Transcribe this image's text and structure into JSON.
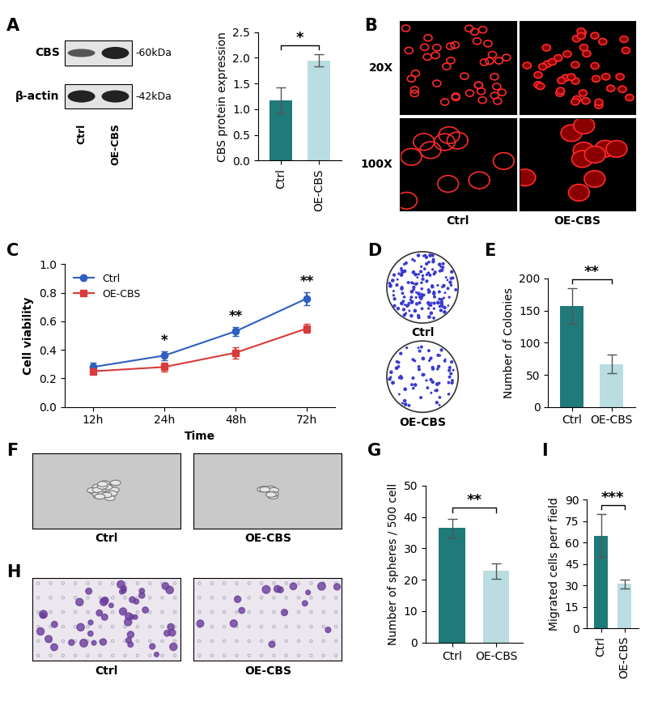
{
  "chart_data": [
    {
      "panel": "A",
      "type": "bar",
      "categories": [
        "Ctrl",
        "OE-CBS"
      ],
      "values": [
        1.17,
        1.95
      ],
      "errors": [
        0.25,
        0.12
      ],
      "colors": [
        "#1f7a7a",
        "#b9dde1"
      ],
      "ylabel": "CBS protein expression",
      "ylim": [
        0,
        2.5
      ],
      "yticks": [
        {
          "value": 0,
          "label": "0.0"
        },
        {
          "value": 0.5,
          "label": "0.5"
        },
        {
          "value": 1,
          "label": "1.0"
        },
        {
          "value": 1.5,
          "label": "1.5"
        },
        {
          "value": 2,
          "label": "2.0"
        },
        {
          "value": 2.5,
          "label": "2.5"
        }
      ],
      "significance": "*"
    },
    {
      "panel": "C",
      "type": "line",
      "categories": [
        "12h",
        "24h",
        "48h",
        "72h"
      ],
      "xlabel": "Time",
      "ylabel": "Cell viability",
      "series": [
        {
          "name": "Ctrl",
          "color": "#2e5fc1",
          "marker": "o",
          "values": [
            0.28,
            0.36,
            0.53,
            0.76
          ],
          "errors": [
            0.03,
            0.03,
            0.03,
            0.045
          ]
        },
        {
          "name": "OE-CBS",
          "color": "#d93a3a",
          "marker": "s",
          "values": [
            0.25,
            0.28,
            0.38,
            0.55
          ],
          "errors": [
            0.02,
            0.03,
            0.04,
            0.03
          ]
        }
      ],
      "ylim": [
        0,
        1
      ],
      "yticks": [
        {
          "value": 0,
          "label": "0.0"
        },
        {
          "value": 0.2,
          "label": "0.2"
        },
        {
          "value": 0.4,
          "label": "0.4"
        },
        {
          "value": 0.6,
          "label": "0.6"
        },
        {
          "value": 0.8,
          "label": "0.8"
        },
        {
          "value": 1,
          "label": "1.0"
        }
      ],
      "annotations": [
        null,
        "*",
        "**",
        "**"
      ],
      "legend": "upper left"
    },
    {
      "panel": "E",
      "type": "bar",
      "categories": [
        "Ctrl",
        "OE-CBS"
      ],
      "values": [
        157,
        67
      ],
      "errors": [
        28,
        14
      ],
      "colors": [
        "#1f7a7a",
        "#b9dde1"
      ],
      "ylabel": "Number of Colonies",
      "ylim": [
        0,
        200
      ],
      "yticks": [
        0,
        50,
        100,
        150,
        200
      ],
      "significance": "**"
    },
    {
      "panel": "G",
      "type": "bar",
      "categories": [
        "Ctrl",
        "OE-CBS"
      ],
      "values": [
        36.5,
        22.8
      ],
      "errors": [
        3,
        2.5
      ],
      "colors": [
        "#1f7a7a",
        "#b9dde1"
      ],
      "ylabel": "Number of spheres / 500 cell",
      "ylim": [
        0,
        50
      ],
      "yticks": [
        0,
        10,
        20,
        30,
        40,
        50
      ],
      "significance": "**"
    },
    {
      "panel": "I",
      "type": "bar",
      "categories": [
        "Ctrl",
        "OE-CBS"
      ],
      "values": [
        65,
        31
      ],
      "errors": [
        15,
        3
      ],
      "colors": [
        "#1f7a7a",
        "#b9dde1"
      ],
      "ylabel": "Migrated cells perr field",
      "ylim": [
        0,
        90
      ],
      "yticks": [
        0,
        15,
        30,
        45,
        60,
        75,
        90
      ],
      "significance": "***"
    }
  ],
  "images": {
    "A": {
      "rows": [
        {
          "label": "CBS",
          "size": "-60kDa"
        },
        {
          "label": "β-actin",
          "size": "-42kDa"
        }
      ],
      "lanes": [
        "Ctrl",
        "OE-CBS"
      ]
    },
    "B": {
      "magnifications": [
        "20X",
        "100X"
      ],
      "groups": [
        "Ctrl",
        "OE-CBS"
      ]
    },
    "D": {
      "groups": [
        "Ctrl",
        "OE-CBS"
      ]
    },
    "F": {
      "groups": [
        "Ctrl",
        "OE-CBS"
      ]
    },
    "H": {
      "groups": [
        "Ctrl",
        "OE-CBS"
      ]
    }
  }
}
